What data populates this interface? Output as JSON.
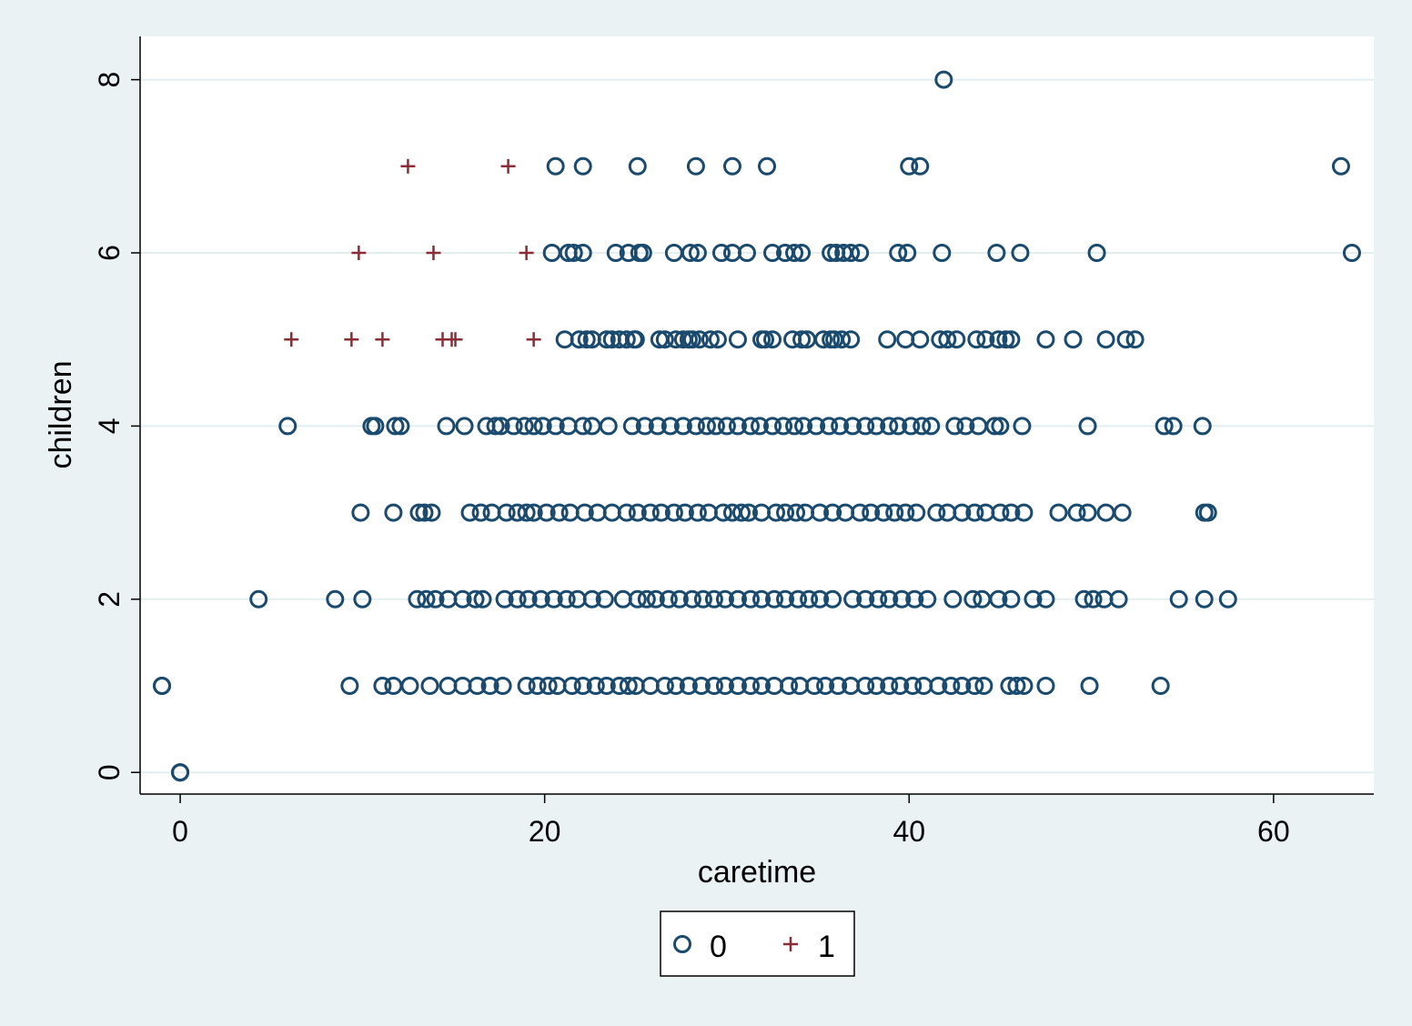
{
  "chart_data": {
    "type": "scatter",
    "xlabel": "caretime",
    "ylabel": "children",
    "xlim": [
      -2.2,
      65.5
    ],
    "ylim": [
      -0.25,
      8.5
    ],
    "xticks": [
      0,
      20,
      40,
      60
    ],
    "yticks": [
      0,
      2,
      4,
      6,
      8
    ],
    "grid": "horizontal",
    "legend_position": "bottom",
    "colors": {
      "background": "#eaf2f3",
      "plot_area": "#ffffff",
      "gridline": "#e3eef0",
      "series_0": "#1a4a6e",
      "series_1": "#8b2d35"
    },
    "series": [
      {
        "name": "0",
        "marker": "circle",
        "points": [
          [
            0,
            0
          ],
          [
            0,
            0
          ],
          [
            0,
            0
          ],
          [
            -1,
            1
          ],
          [
            41.9,
            8
          ],
          [
            20.6,
            7
          ],
          [
            22.1,
            7
          ],
          [
            25.1,
            7
          ],
          [
            28.3,
            7
          ],
          [
            30.3,
            7
          ],
          [
            32.2,
            7
          ],
          [
            40,
            7
          ],
          [
            40.6,
            7
          ],
          [
            63.7,
            7
          ],
          [
            20.4,
            6
          ],
          [
            21.3,
            6
          ],
          [
            21.6,
            6
          ],
          [
            22.1,
            6
          ],
          [
            23.9,
            6
          ],
          [
            24.6,
            6
          ],
          [
            25.2,
            6
          ],
          [
            25.4,
            6
          ],
          [
            27.1,
            6
          ],
          [
            28,
            6
          ],
          [
            28.4,
            6
          ],
          [
            29.7,
            6
          ],
          [
            30.3,
            6
          ],
          [
            31.1,
            6
          ],
          [
            32.5,
            6
          ],
          [
            33.2,
            6
          ],
          [
            33.7,
            6
          ],
          [
            34.1,
            6
          ],
          [
            35.7,
            6
          ],
          [
            36,
            6
          ],
          [
            36.4,
            6
          ],
          [
            36.8,
            6
          ],
          [
            37.3,
            6
          ],
          [
            39.4,
            6
          ],
          [
            39.9,
            6
          ],
          [
            41.8,
            6
          ],
          [
            44.8,
            6
          ],
          [
            46.1,
            6
          ],
          [
            50.3,
            6
          ],
          [
            64.3,
            6
          ],
          [
            21.1,
            5
          ],
          [
            21.9,
            5
          ],
          [
            22.3,
            5
          ],
          [
            22.6,
            5
          ],
          [
            23.4,
            5
          ],
          [
            23.7,
            5
          ],
          [
            24.1,
            5
          ],
          [
            24.5,
            5
          ],
          [
            24.9,
            5
          ],
          [
            25,
            5
          ],
          [
            26.3,
            5
          ],
          [
            26.6,
            5
          ],
          [
            27.2,
            5
          ],
          [
            27.6,
            5
          ],
          [
            27.9,
            5
          ],
          [
            28.1,
            5
          ],
          [
            28.5,
            5
          ],
          [
            29.1,
            5
          ],
          [
            29.5,
            5
          ],
          [
            30.6,
            5
          ],
          [
            31.9,
            5
          ],
          [
            32.1,
            5
          ],
          [
            32.5,
            5
          ],
          [
            33.6,
            5
          ],
          [
            34.1,
            5
          ],
          [
            34.4,
            5
          ],
          [
            35.3,
            5
          ],
          [
            35.7,
            5
          ],
          [
            35.9,
            5
          ],
          [
            36.3,
            5
          ],
          [
            36.8,
            5
          ],
          [
            38.8,
            5
          ],
          [
            39.8,
            5
          ],
          [
            40.6,
            5
          ],
          [
            41.7,
            5
          ],
          [
            42.1,
            5
          ],
          [
            42.6,
            5
          ],
          [
            43.7,
            5
          ],
          [
            44.2,
            5
          ],
          [
            44.9,
            5
          ],
          [
            45.3,
            5
          ],
          [
            45.6,
            5
          ],
          [
            47.5,
            5
          ],
          [
            49,
            5
          ],
          [
            50.8,
            5
          ],
          [
            51.9,
            5
          ],
          [
            52.4,
            5
          ],
          [
            5.9,
            4
          ],
          [
            10.5,
            4
          ],
          [
            10.7,
            4
          ],
          [
            11.8,
            4
          ],
          [
            12.1,
            4
          ],
          [
            14.6,
            4
          ],
          [
            15.6,
            4
          ],
          [
            16.8,
            4
          ],
          [
            17.3,
            4
          ],
          [
            17.6,
            4
          ],
          [
            18.3,
            4
          ],
          [
            18.9,
            4
          ],
          [
            19.4,
            4
          ],
          [
            19.9,
            4
          ],
          [
            20.6,
            4
          ],
          [
            21.3,
            4
          ],
          [
            22.1,
            4
          ],
          [
            22.6,
            4
          ],
          [
            23.5,
            4
          ],
          [
            24.8,
            4
          ],
          [
            25.5,
            4
          ],
          [
            26.2,
            4
          ],
          [
            26.9,
            4
          ],
          [
            27.6,
            4
          ],
          [
            28.3,
            4
          ],
          [
            28.9,
            4
          ],
          [
            29.4,
            4
          ],
          [
            30,
            4
          ],
          [
            30.6,
            4
          ],
          [
            31.3,
            4
          ],
          [
            31.8,
            4
          ],
          [
            32.5,
            4
          ],
          [
            33.1,
            4
          ],
          [
            33.7,
            4
          ],
          [
            34.2,
            4
          ],
          [
            34.9,
            4
          ],
          [
            35.6,
            4
          ],
          [
            36.2,
            4
          ],
          [
            36.9,
            4
          ],
          [
            37.6,
            4
          ],
          [
            38.2,
            4
          ],
          [
            38.9,
            4
          ],
          [
            39.4,
            4
          ],
          [
            40.1,
            4
          ],
          [
            40.7,
            4
          ],
          [
            41.2,
            4
          ],
          [
            42.5,
            4
          ],
          [
            43.1,
            4
          ],
          [
            43.8,
            4
          ],
          [
            44.7,
            4
          ],
          [
            45,
            4
          ],
          [
            46.2,
            4
          ],
          [
            49.8,
            4
          ],
          [
            54,
            4
          ],
          [
            54.5,
            4
          ],
          [
            56.1,
            4
          ],
          [
            9.9,
            3
          ],
          [
            11.7,
            3
          ],
          [
            13.1,
            3
          ],
          [
            13.4,
            3
          ],
          [
            13.8,
            3
          ],
          [
            15.9,
            3
          ],
          [
            16.5,
            3
          ],
          [
            17.1,
            3
          ],
          [
            17.9,
            3
          ],
          [
            18.5,
            3
          ],
          [
            19,
            3
          ],
          [
            19.4,
            3
          ],
          [
            20.1,
            3
          ],
          [
            20.8,
            3
          ],
          [
            21.4,
            3
          ],
          [
            22.2,
            3
          ],
          [
            22.9,
            3
          ],
          [
            23.7,
            3
          ],
          [
            24.5,
            3
          ],
          [
            25.1,
            3
          ],
          [
            25.8,
            3
          ],
          [
            26.4,
            3
          ],
          [
            27.1,
            3
          ],
          [
            27.7,
            3
          ],
          [
            28.4,
            3
          ],
          [
            29,
            3
          ],
          [
            29.8,
            3
          ],
          [
            30.3,
            3
          ],
          [
            30.8,
            3
          ],
          [
            31.2,
            3
          ],
          [
            31.9,
            3
          ],
          [
            32.7,
            3
          ],
          [
            33.2,
            3
          ],
          [
            33.8,
            3
          ],
          [
            34.3,
            3
          ],
          [
            35.1,
            3
          ],
          [
            35.8,
            3
          ],
          [
            36.5,
            3
          ],
          [
            37.3,
            3
          ],
          [
            37.9,
            3
          ],
          [
            38.6,
            3
          ],
          [
            39.2,
            3
          ],
          [
            39.8,
            3
          ],
          [
            40.4,
            3
          ],
          [
            41.5,
            3
          ],
          [
            42.1,
            3
          ],
          [
            42.9,
            3
          ],
          [
            43.6,
            3
          ],
          [
            44.2,
            3
          ],
          [
            45,
            3
          ],
          [
            45.6,
            3
          ],
          [
            46.3,
            3
          ],
          [
            48.2,
            3
          ],
          [
            49.2,
            3
          ],
          [
            49.8,
            3
          ],
          [
            50.8,
            3
          ],
          [
            51.7,
            3
          ],
          [
            56.2,
            3
          ],
          [
            56.4,
            3
          ],
          [
            4.3,
            2
          ],
          [
            8.5,
            2
          ],
          [
            10,
            2
          ],
          [
            13,
            2
          ],
          [
            13.5,
            2
          ],
          [
            14,
            2
          ],
          [
            14.7,
            2
          ],
          [
            15.5,
            2
          ],
          [
            16.2,
            2
          ],
          [
            16.6,
            2
          ],
          [
            17.8,
            2
          ],
          [
            18.5,
            2
          ],
          [
            19.1,
            2
          ],
          [
            19.8,
            2
          ],
          [
            20.5,
            2
          ],
          [
            21.2,
            2
          ],
          [
            21.8,
            2
          ],
          [
            22.6,
            2
          ],
          [
            23.3,
            2
          ],
          [
            24.3,
            2
          ],
          [
            25.1,
            2
          ],
          [
            25.6,
            2
          ],
          [
            26.1,
            2
          ],
          [
            26.8,
            2
          ],
          [
            27.4,
            2
          ],
          [
            28.1,
            2
          ],
          [
            28.7,
            2
          ],
          [
            29.3,
            2
          ],
          [
            29.9,
            2
          ],
          [
            30.6,
            2
          ],
          [
            31.3,
            2
          ],
          [
            31.9,
            2
          ],
          [
            32.6,
            2
          ],
          [
            33.2,
            2
          ],
          [
            33.9,
            2
          ],
          [
            34.5,
            2
          ],
          [
            35.1,
            2
          ],
          [
            35.8,
            2
          ],
          [
            36.9,
            2
          ],
          [
            37.6,
            2
          ],
          [
            38.3,
            2
          ],
          [
            38.9,
            2
          ],
          [
            39.6,
            2
          ],
          [
            40.3,
            2
          ],
          [
            41,
            2
          ],
          [
            42.4,
            2
          ],
          [
            43.5,
            2
          ],
          [
            44,
            2
          ],
          [
            44.9,
            2
          ],
          [
            45.6,
            2
          ],
          [
            46.8,
            2
          ],
          [
            47.5,
            2
          ],
          [
            49.6,
            2
          ],
          [
            50.1,
            2
          ],
          [
            50.7,
            2
          ],
          [
            51.5,
            2
          ],
          [
            54.8,
            2
          ],
          [
            56.2,
            2
          ],
          [
            57.5,
            2
          ],
          [
            -1,
            1
          ],
          [
            9.3,
            1
          ],
          [
            11.1,
            1
          ],
          [
            11.7,
            1
          ],
          [
            12.6,
            1
          ],
          [
            13.7,
            1
          ],
          [
            14.7,
            1
          ],
          [
            15.5,
            1
          ],
          [
            16.3,
            1
          ],
          [
            17,
            1
          ],
          [
            17.7,
            1
          ],
          [
            19,
            1
          ],
          [
            19.6,
            1
          ],
          [
            20.2,
            1
          ],
          [
            20.7,
            1
          ],
          [
            21.5,
            1
          ],
          [
            22.1,
            1
          ],
          [
            22.8,
            1
          ],
          [
            23.4,
            1
          ],
          [
            24.1,
            1
          ],
          [
            24.6,
            1
          ],
          [
            25,
            1
          ],
          [
            25.8,
            1
          ],
          [
            26.6,
            1
          ],
          [
            27.2,
            1
          ],
          [
            27.9,
            1
          ],
          [
            28.6,
            1
          ],
          [
            29.3,
            1
          ],
          [
            29.9,
            1
          ],
          [
            30.6,
            1
          ],
          [
            31.3,
            1
          ],
          [
            31.9,
            1
          ],
          [
            32.6,
            1
          ],
          [
            33.4,
            1
          ],
          [
            34,
            1
          ],
          [
            34.8,
            1
          ],
          [
            35.4,
            1
          ],
          [
            36.1,
            1
          ],
          [
            36.8,
            1
          ],
          [
            37.6,
            1
          ],
          [
            38.2,
            1
          ],
          [
            38.9,
            1
          ],
          [
            39.5,
            1
          ],
          [
            40.2,
            1
          ],
          [
            40.8,
            1
          ],
          [
            41.6,
            1
          ],
          [
            42.3,
            1
          ],
          [
            42.9,
            1
          ],
          [
            43.6,
            1
          ],
          [
            44.1,
            1
          ],
          [
            45.5,
            1
          ],
          [
            45.9,
            1
          ],
          [
            46.3,
            1
          ],
          [
            47.5,
            1
          ],
          [
            49.9,
            1
          ],
          [
            53.8,
            1
          ]
        ]
      },
      {
        "name": "1",
        "marker": "plus",
        "points": [
          [
            12.5,
            7
          ],
          [
            18,
            7
          ],
          [
            9.8,
            6
          ],
          [
            13.9,
            6
          ],
          [
            19,
            6
          ],
          [
            6.1,
            5
          ],
          [
            9.4,
            5
          ],
          [
            11.1,
            5
          ],
          [
            14.4,
            5
          ],
          [
            14.9,
            5
          ],
          [
            15.1,
            5
          ],
          [
            19.4,
            5
          ]
        ]
      }
    ]
  }
}
